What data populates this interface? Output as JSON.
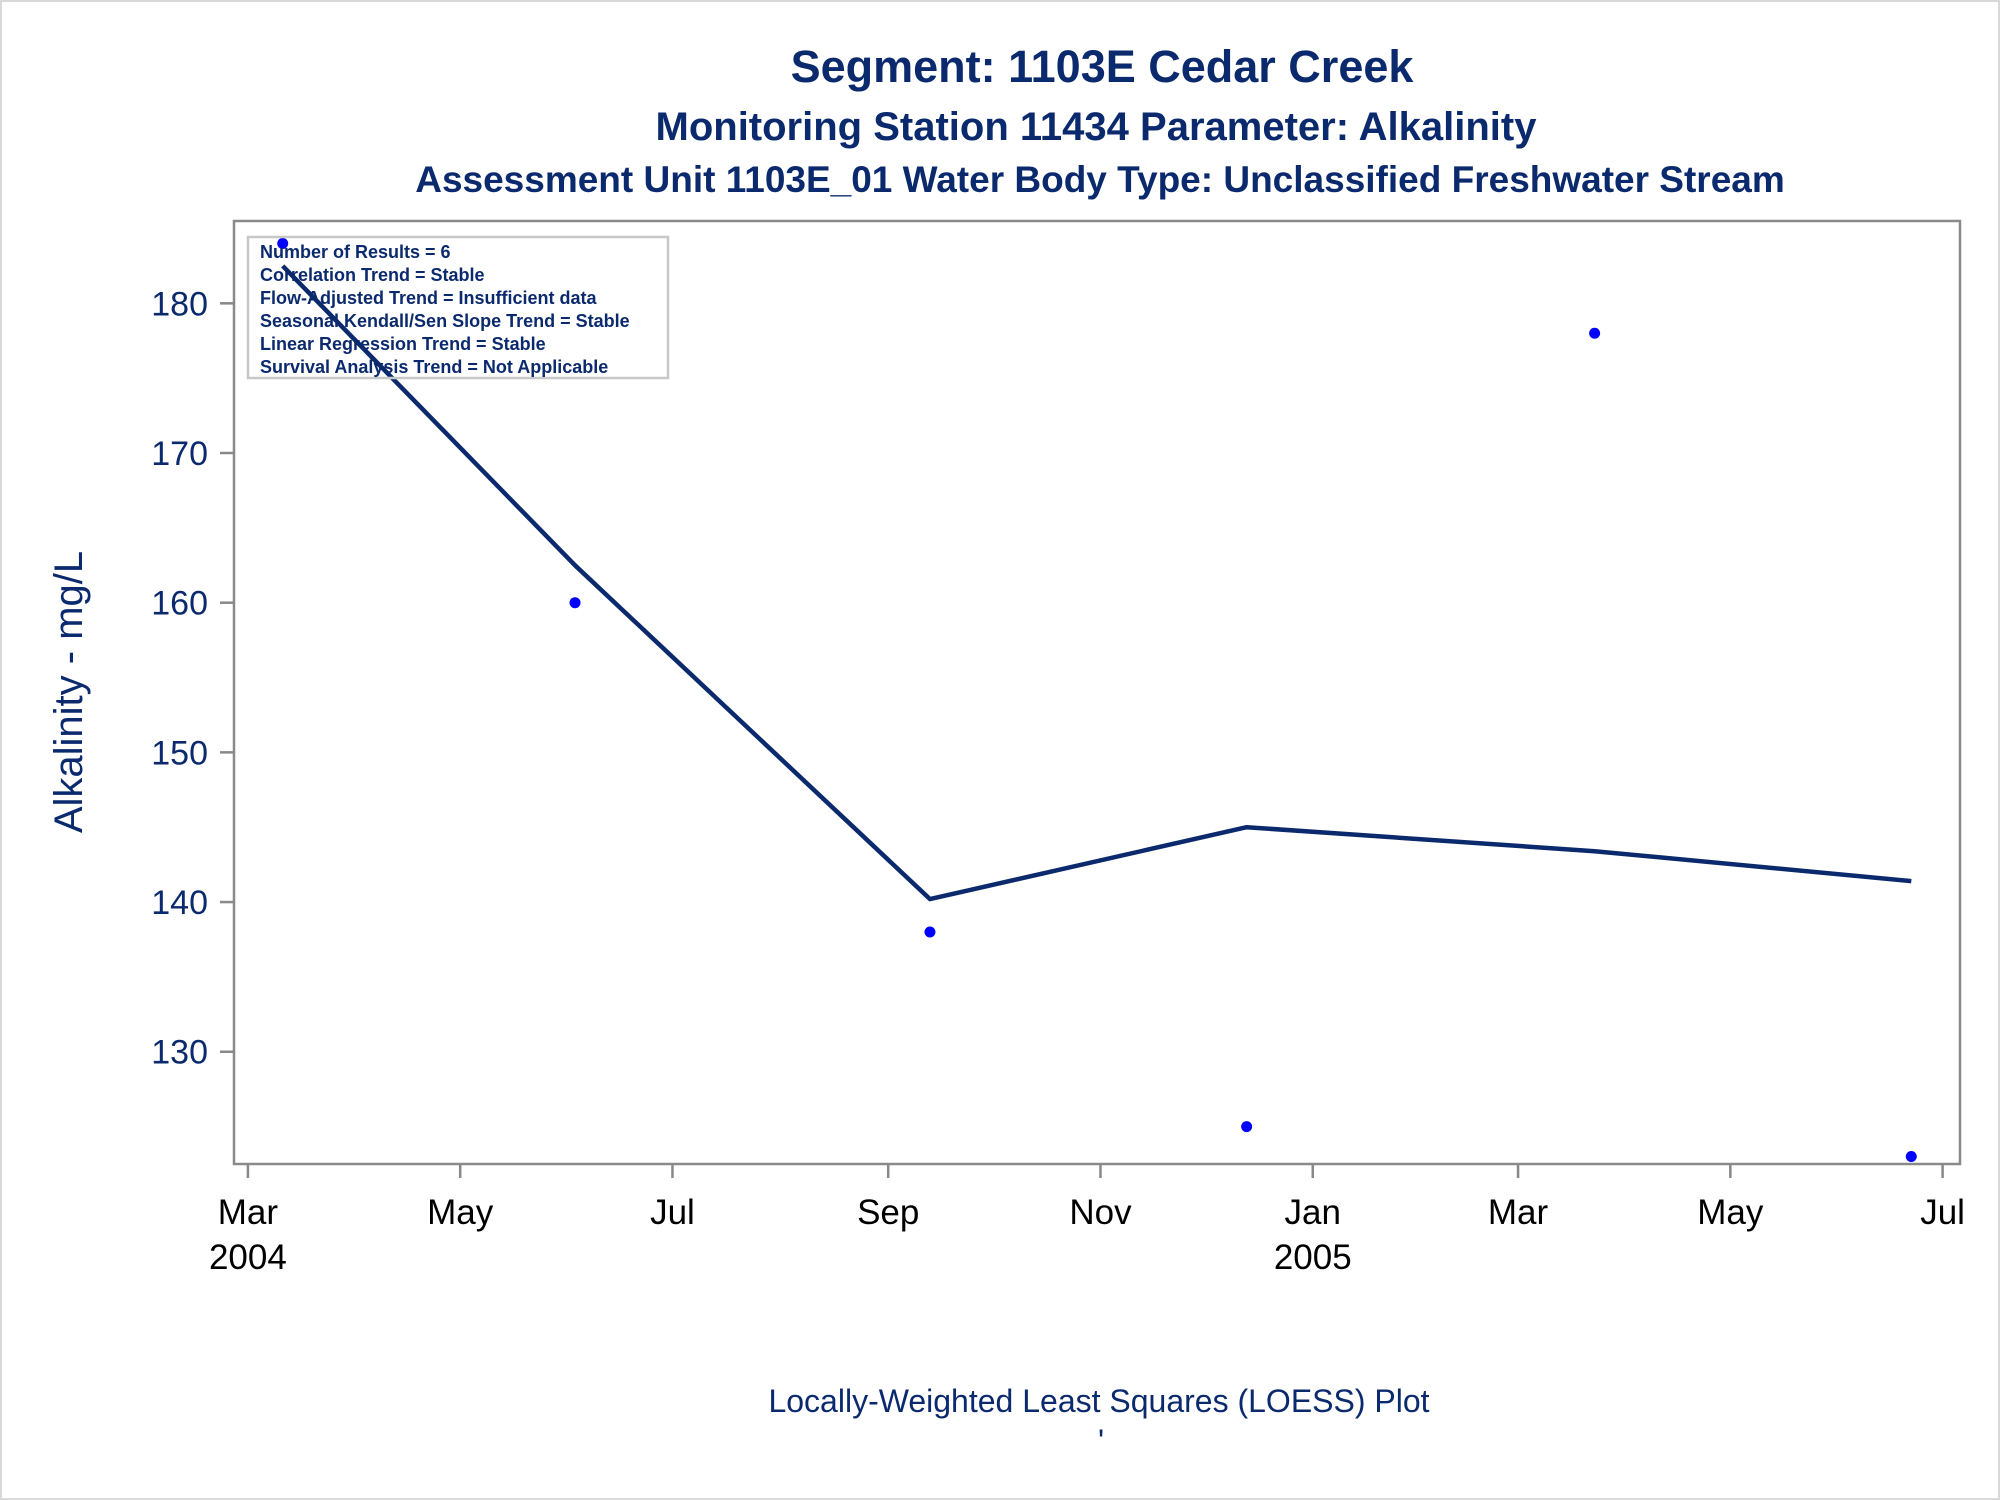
{
  "chart_data": {
    "type": "scatter",
    "title": "Segment: 1103E  Cedar Creek",
    "subtitle": "Monitoring Station 11434 Parameter: Alkalinity",
    "subtitle2": "Assessment Unit 1103E_01   Water Body Type: Unclassified Freshwater Stream",
    "xlabel": "",
    "ylabel": "Alkalinity - mg/L",
    "footnote": "Locally-Weighted Least Squares (LOESS) Plot",
    "footnote_mark": "'",
    "ylim": [
      122.5,
      185.5
    ],
    "xlim": [
      "2004-02-26",
      "2005-07-06"
    ],
    "y_ticks": [
      130,
      140,
      150,
      160,
      170,
      180
    ],
    "x_ticks": [
      {
        "date": "2004-03-01",
        "label": "Mar",
        "year": "2004"
      },
      {
        "date": "2004-05-01",
        "label": "May",
        "year": ""
      },
      {
        "date": "2004-07-01",
        "label": "Jul",
        "year": ""
      },
      {
        "date": "2004-09-01",
        "label": "Sep",
        "year": ""
      },
      {
        "date": "2004-11-01",
        "label": "Nov",
        "year": ""
      },
      {
        "date": "2005-01-01",
        "label": "Jan",
        "year": "2005"
      },
      {
        "date": "2005-03-01",
        "label": "Mar",
        "year": ""
      },
      {
        "date": "2005-05-01",
        "label": "May",
        "year": ""
      },
      {
        "date": "2005-07-01",
        "label": "Jul",
        "year": ""
      }
    ],
    "grid": false,
    "legend": "none",
    "series": [
      {
        "kind": "points",
        "points": [
          {
            "x": "2004-03-11",
            "y": 184
          },
          {
            "x": "2004-06-03",
            "y": 160
          },
          {
            "x": "2004-09-13",
            "y": 138
          },
          {
            "x": "2004-12-13",
            "y": 125
          },
          {
            "x": "2005-03-23",
            "y": 178
          },
          {
            "x": "2005-06-22",
            "y": 123
          }
        ],
        "color": "#0000ff"
      },
      {
        "kind": "loess-line",
        "points": [
          {
            "x": "2004-03-11",
            "y": 182.5
          },
          {
            "x": "2004-06-03",
            "y": 162.5
          },
          {
            "x": "2004-09-13",
            "y": 140.2
          },
          {
            "x": "2004-12-13",
            "y": 145.0
          },
          {
            "x": "2005-03-23",
            "y": 143.4
          },
          {
            "x": "2005-06-22",
            "y": 141.4
          }
        ],
        "color": "#0b2a6e"
      }
    ],
    "stats_box": [
      "Number of Results = 6",
      "Correlation Trend = Stable",
      "Flow-Adjusted Trend = Insufficient data",
      "Seasonal Kendall/Sen Slope Trend = Stable",
      "Linear Regression Trend = Stable",
      "Survival Analysis Trend = Not Applicable"
    ],
    "stats_box_position": "top-left",
    "colors": {
      "text": "#0b2a6e",
      "axis": "#888888",
      "points": "#0000ff",
      "line": "#0b2a6e"
    }
  }
}
